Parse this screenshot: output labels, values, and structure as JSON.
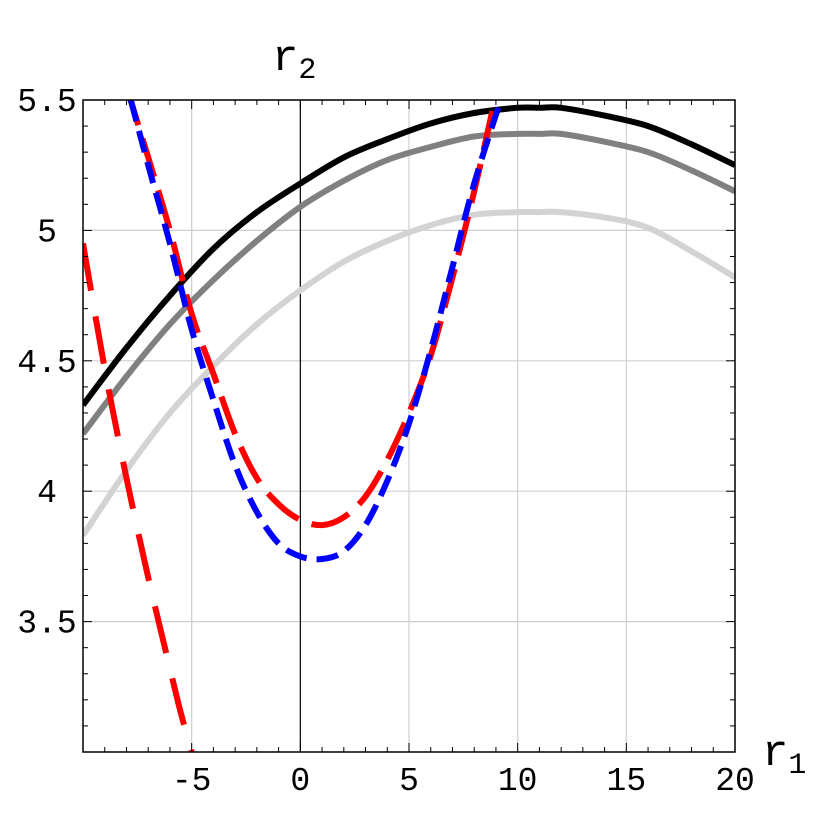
{
  "chart_data": {
    "type": "line",
    "xlabel": "r",
    "xlabel_sub": "1",
    "ylabel": "r",
    "ylabel_sub": "2",
    "xlim": [
      -10,
      20
    ],
    "ylim": [
      3,
      5.5
    ],
    "x_ticks": [
      -5,
      0,
      5,
      10,
      15,
      20
    ],
    "x_tick_labels": [
      "-5",
      "0",
      "5",
      "10",
      "15",
      "20"
    ],
    "y_ticks": [
      3.5,
      4,
      4.5,
      5,
      5.5
    ],
    "y_tick_labels": [
      "3.5",
      "4",
      "4.5",
      "5",
      "5.5"
    ],
    "grid": true,
    "series": [
      {
        "color": "#000000",
        "style": "solid",
        "points": [
          [
            -10,
            4.33
          ],
          [
            -8,
            4.55
          ],
          [
            -6,
            4.75
          ],
          [
            -4,
            4.93
          ],
          [
            -2,
            5.07
          ],
          [
            0,
            5.18
          ],
          [
            2,
            5.28
          ],
          [
            4,
            5.35
          ],
          [
            6,
            5.41
          ],
          [
            8,
            5.45
          ],
          [
            10,
            5.47
          ],
          [
            11,
            5.47
          ],
          [
            12,
            5.47
          ],
          [
            14,
            5.44
          ],
          [
            16,
            5.4
          ],
          [
            18,
            5.33
          ],
          [
            20,
            5.25
          ]
        ]
      },
      {
        "color": "#808080",
        "style": "solid",
        "points": [
          [
            -10,
            4.22
          ],
          [
            -8,
            4.44
          ],
          [
            -6,
            4.64
          ],
          [
            -4,
            4.81
          ],
          [
            -2,
            4.96
          ],
          [
            0,
            5.09
          ],
          [
            2,
            5.19
          ],
          [
            4,
            5.27
          ],
          [
            6,
            5.32
          ],
          [
            8,
            5.36
          ],
          [
            10,
            5.37
          ],
          [
            11,
            5.37
          ],
          [
            12,
            5.37
          ],
          [
            14,
            5.34
          ],
          [
            16,
            5.3
          ],
          [
            18,
            5.23
          ],
          [
            20,
            5.15
          ]
        ]
      },
      {
        "color": "#d3d3d3",
        "style": "solid",
        "points": [
          [
            -10,
            3.83
          ],
          [
            -8,
            4.08
          ],
          [
            -6,
            4.3
          ],
          [
            -4,
            4.48
          ],
          [
            -2,
            4.64
          ],
          [
            0,
            4.77
          ],
          [
            2,
            4.88
          ],
          [
            4,
            4.96
          ],
          [
            6,
            5.02
          ],
          [
            8,
            5.06
          ],
          [
            10,
            5.07
          ],
          [
            11,
            5.07
          ],
          [
            12,
            5.07
          ],
          [
            14,
            5.05
          ],
          [
            16,
            5.01
          ],
          [
            18,
            4.92
          ],
          [
            20,
            4.82
          ]
        ]
      },
      {
        "color": "#ff0000",
        "style": "medium-dash",
        "points": [
          [
            -8,
            5.55
          ],
          [
            -7,
            5.28
          ],
          [
            -6,
            5.0
          ],
          [
            -5,
            4.68
          ],
          [
            -4,
            4.45
          ],
          [
            -3,
            4.22
          ],
          [
            -2,
            4.05
          ],
          [
            -1,
            3.95
          ],
          [
            0,
            3.89
          ],
          [
            1,
            3.87
          ],
          [
            2,
            3.9
          ],
          [
            3,
            3.98
          ],
          [
            4,
            4.12
          ],
          [
            5,
            4.3
          ],
          [
            6,
            4.52
          ],
          [
            7,
            4.82
          ],
          [
            8,
            5.15
          ],
          [
            9,
            5.52
          ]
        ]
      },
      {
        "color": "#0000ff",
        "style": "short-dash",
        "points": [
          [
            -7.8,
            5.5
          ],
          [
            -7,
            5.25
          ],
          [
            -6,
            4.95
          ],
          [
            -5,
            4.62
          ],
          [
            -4,
            4.35
          ],
          [
            -3,
            4.1
          ],
          [
            -2,
            3.92
          ],
          [
            -1,
            3.8
          ],
          [
            0,
            3.75
          ],
          [
            1,
            3.74
          ],
          [
            2,
            3.77
          ],
          [
            3,
            3.87
          ],
          [
            4,
            4.04
          ],
          [
            5,
            4.26
          ],
          [
            6,
            4.54
          ],
          [
            7,
            4.86
          ],
          [
            8,
            5.18
          ],
          [
            9.3,
            5.52
          ]
        ]
      },
      {
        "color": "#ff0000",
        "style": "long-dash",
        "points": [
          [
            -10,
            4.95
          ],
          [
            -9,
            4.47
          ],
          [
            -8,
            4.05
          ],
          [
            -7,
            3.67
          ],
          [
            -6,
            3.32
          ],
          [
            -5.5,
            3.15
          ],
          [
            -5,
            3.0
          ]
        ]
      }
    ]
  }
}
